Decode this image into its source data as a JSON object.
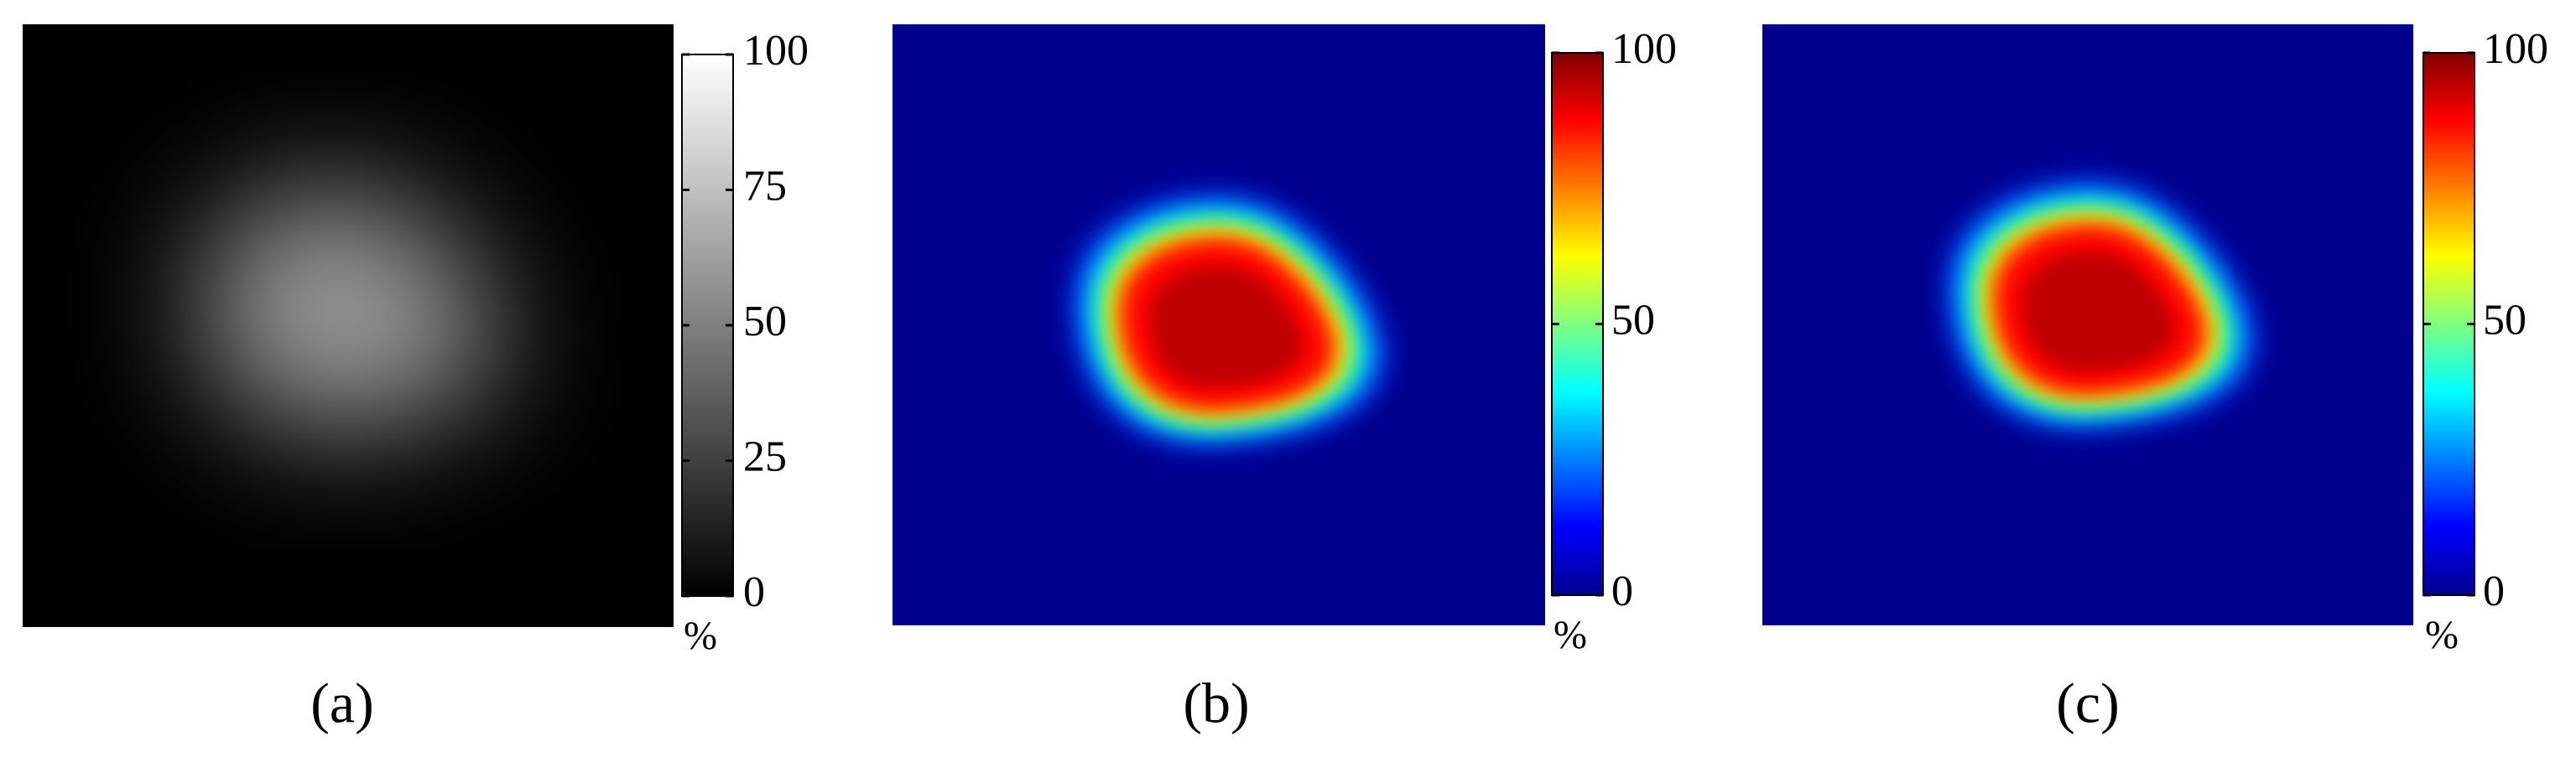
{
  "panels": [
    {
      "caption": "(a)",
      "colormap": "gray",
      "colorbar": {
        "lim": [
          0,
          100
        ],
        "ticks": [
          0,
          25,
          50,
          75,
          100
        ],
        "unit": "%"
      }
    },
    {
      "caption": "(b)",
      "colormap": "jet",
      "colorbar": {
        "lim": [
          0,
          100
        ],
        "ticks": [
          0,
          50,
          100
        ],
        "unit": "%"
      }
    },
    {
      "caption": "(c)",
      "colormap": "jet",
      "colorbar": {
        "lim": [
          0,
          100
        ],
        "ticks": [
          0,
          50,
          100
        ],
        "unit": "%"
      }
    }
  ]
}
